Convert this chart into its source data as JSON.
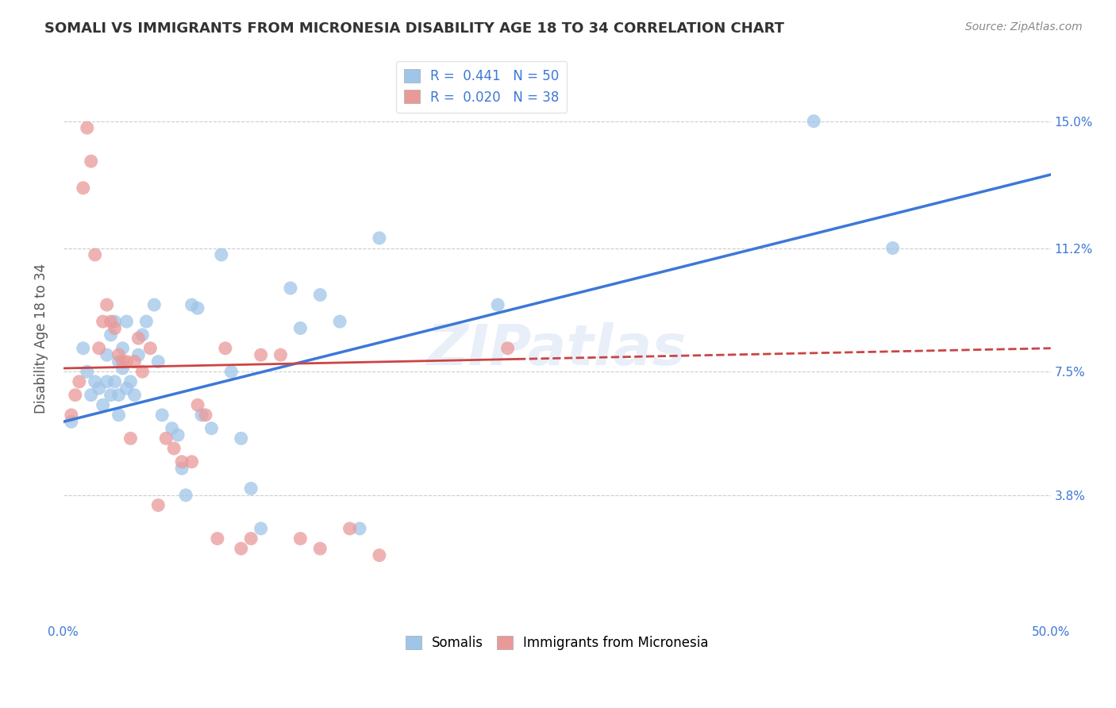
{
  "title": "SOMALI VS IMMIGRANTS FROM MICRONESIA DISABILITY AGE 18 TO 34 CORRELATION CHART",
  "source": "Source: ZipAtlas.com",
  "ylabel": "Disability Age 18 to 34",
  "xlim": [
    0.0,
    0.5
  ],
  "ylim": [
    0.0,
    0.17
  ],
  "yticks": [
    0.038,
    0.075,
    0.112,
    0.15
  ],
  "ytick_labels": [
    "3.8%",
    "7.5%",
    "11.2%",
    "15.0%"
  ],
  "xticks": [
    0.0,
    0.1,
    0.2,
    0.3,
    0.4,
    0.5
  ],
  "xtick_labels": [
    "0.0%",
    "",
    "",
    "",
    "",
    "50.0%"
  ],
  "somali_R": 0.441,
  "somali_N": 50,
  "micro_R": 0.02,
  "micro_N": 38,
  "somali_color": "#9fc5e8",
  "micro_color": "#ea9999",
  "trend_somali_color": "#3c78d8",
  "trend_micro_color": "#cc4444",
  "background_color": "#ffffff",
  "grid_color": "#cccccc",
  "watermark_text": "ZIPatlas",
  "legend_text_color": "#3c78d8",
  "somali_x": [
    0.004,
    0.01,
    0.012,
    0.014,
    0.016,
    0.018,
    0.02,
    0.022,
    0.022,
    0.024,
    0.024,
    0.026,
    0.026,
    0.028,
    0.028,
    0.028,
    0.03,
    0.03,
    0.032,
    0.032,
    0.034,
    0.036,
    0.038,
    0.04,
    0.042,
    0.046,
    0.048,
    0.05,
    0.055,
    0.058,
    0.06,
    0.062,
    0.065,
    0.068,
    0.07,
    0.075,
    0.08,
    0.085,
    0.09,
    0.095,
    0.1,
    0.115,
    0.12,
    0.13,
    0.14,
    0.15,
    0.16,
    0.22,
    0.38,
    0.42
  ],
  "somali_y": [
    0.06,
    0.082,
    0.075,
    0.068,
    0.072,
    0.07,
    0.065,
    0.072,
    0.08,
    0.068,
    0.086,
    0.09,
    0.072,
    0.078,
    0.062,
    0.068,
    0.076,
    0.082,
    0.07,
    0.09,
    0.072,
    0.068,
    0.08,
    0.086,
    0.09,
    0.095,
    0.078,
    0.062,
    0.058,
    0.056,
    0.046,
    0.038,
    0.095,
    0.094,
    0.062,
    0.058,
    0.11,
    0.075,
    0.055,
    0.04,
    0.028,
    0.1,
    0.088,
    0.098,
    0.09,
    0.028,
    0.115,
    0.095,
    0.15,
    0.112
  ],
  "micro_x": [
    0.004,
    0.006,
    0.008,
    0.01,
    0.012,
    0.014,
    0.016,
    0.018,
    0.02,
    0.022,
    0.024,
    0.026,
    0.028,
    0.03,
    0.032,
    0.034,
    0.036,
    0.038,
    0.04,
    0.044,
    0.048,
    0.052,
    0.056,
    0.06,
    0.065,
    0.068,
    0.072,
    0.078,
    0.082,
    0.09,
    0.095,
    0.1,
    0.11,
    0.12,
    0.13,
    0.145,
    0.16,
    0.225
  ],
  "micro_y": [
    0.062,
    0.068,
    0.072,
    0.13,
    0.148,
    0.138,
    0.11,
    0.082,
    0.09,
    0.095,
    0.09,
    0.088,
    0.08,
    0.078,
    0.078,
    0.055,
    0.078,
    0.085,
    0.075,
    0.082,
    0.035,
    0.055,
    0.052,
    0.048,
    0.048,
    0.065,
    0.062,
    0.025,
    0.082,
    0.022,
    0.025,
    0.08,
    0.08,
    0.025,
    0.022,
    0.028,
    0.02,
    0.082
  ],
  "trend_somali_x0": 0.0,
  "trend_somali_y0": 0.06,
  "trend_somali_x1": 0.5,
  "trend_somali_y1": 0.134,
  "trend_micro_x0": 0.0,
  "trend_micro_y0": 0.076,
  "trend_micro_x1": 0.5,
  "trend_micro_y1": 0.082,
  "trend_micro_solid_end": 0.23
}
